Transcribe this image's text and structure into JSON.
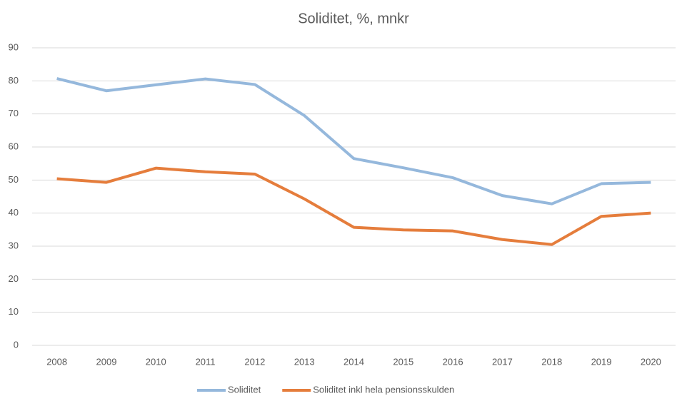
{
  "chart_data": {
    "type": "line",
    "title": "Soliditet, %, mnkr",
    "categories": [
      "2008",
      "2009",
      "2010",
      "2011",
      "2012",
      "2013",
      "2014",
      "2015",
      "2016",
      "2017",
      "2018",
      "2019",
      "2020"
    ],
    "series": [
      {
        "name": "Soliditet",
        "color": "#95b8dc",
        "values": [
          80.7,
          77,
          78.8,
          80.6,
          78.9,
          69.5,
          56.5,
          53.7,
          50.7,
          45.3,
          42.8,
          48.9,
          49.3
        ]
      },
      {
        "name": "Soliditet inkl hela pensionsskulden",
        "color": "#e57d3c",
        "values": [
          50.4,
          49.3,
          53.6,
          52.5,
          51.8,
          44.3,
          35.7,
          34.9,
          34.6,
          32,
          30.5,
          39,
          40
        ]
      }
    ],
    "ylim": [
      0,
      90
    ],
    "yticks": [
      0,
      10,
      20,
      30,
      40,
      50,
      60,
      70,
      80,
      90
    ],
    "grid": true,
    "legend": "bottom"
  }
}
